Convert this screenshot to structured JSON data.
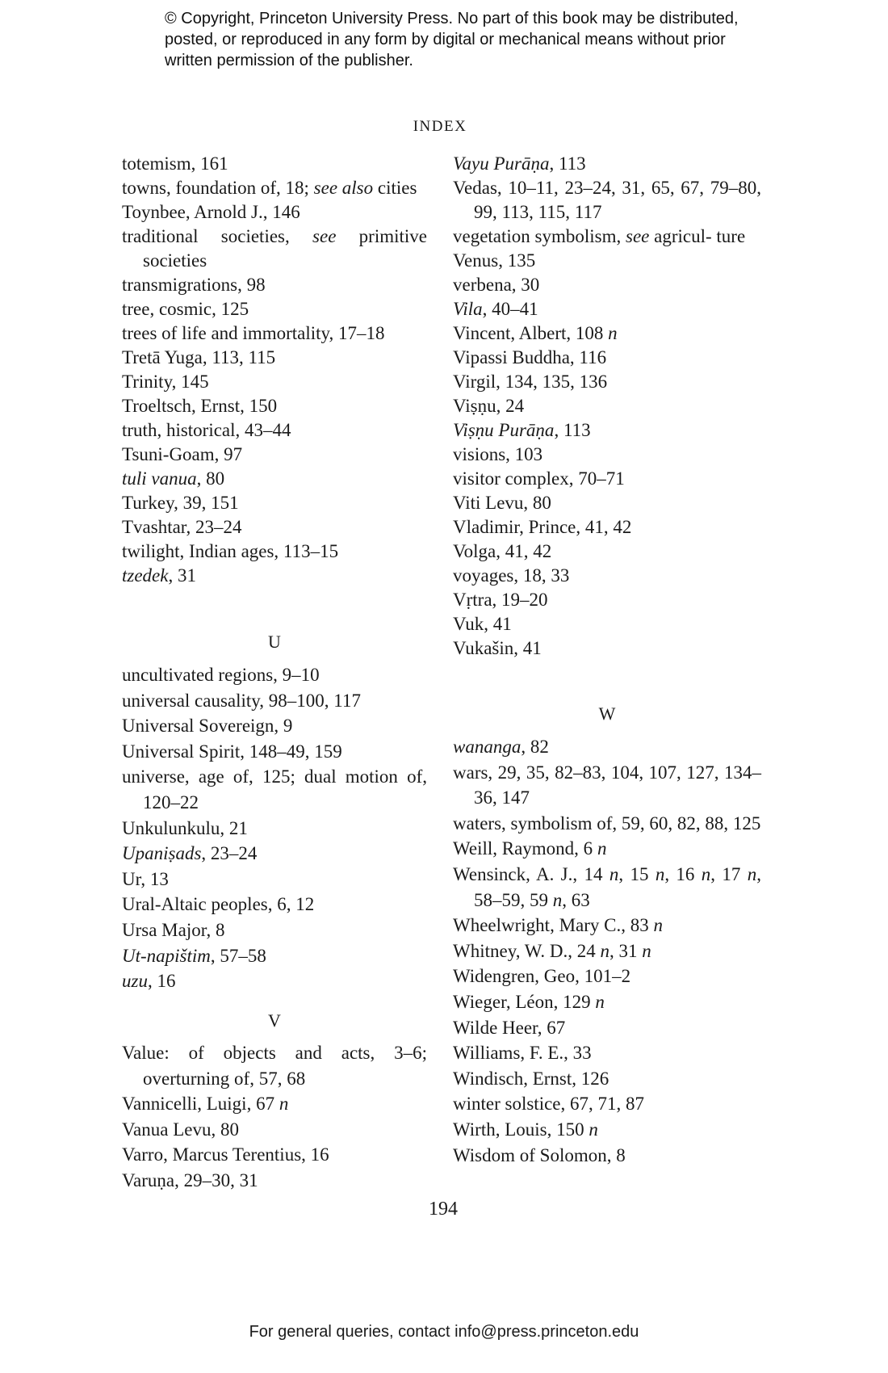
{
  "copyright": "© Copyright, Princeton University Press. No part of this book may be distributed, posted, or reproduced in any form by digital or mechanical means without prior written permission of the publisher.",
  "header": "INDEX",
  "sections": {
    "t": [
      [
        [
          "totemism, 161"
        ]
      ],
      [
        [
          "towns, foundation of, 18; "
        ],
        [
          "see also",
          "i"
        ],
        [
          " cities"
        ]
      ],
      [
        [
          "Toynbee, Arnold J., 146"
        ]
      ],
      [
        [
          "traditional societies, "
        ],
        [
          "see",
          "i"
        ],
        [
          " primitive societies"
        ]
      ],
      [
        [
          "transmigrations, 98"
        ]
      ],
      [
        [
          "tree, cosmic, 125"
        ]
      ],
      [
        [
          "trees of life and immortality, 17–18"
        ]
      ],
      [
        [
          "Tretā Yuga, 113, 115"
        ]
      ],
      [
        [
          "Trinity, 145"
        ]
      ],
      [
        [
          "Troeltsch, Ernst, 150"
        ]
      ],
      [
        [
          "truth, historical, 43–44"
        ]
      ],
      [
        [
          "Tsuni-Goam, 97"
        ]
      ],
      [
        [
          "tuli vanua",
          "i"
        ],
        [
          ", 80"
        ]
      ],
      [
        [
          "Turkey, 39, 151"
        ]
      ],
      [
        [
          "Tvashtar, 23–24"
        ]
      ],
      [
        [
          "twilight, Indian ages, 113–15"
        ]
      ],
      [
        [
          "tzedek",
          "i"
        ],
        [
          ", 31"
        ]
      ]
    ],
    "u_heading": "U",
    "u": [
      [
        [
          "uncultivated regions, 9–10"
        ]
      ],
      [
        [
          "universal causality, 98–100, 117"
        ]
      ],
      [
        [
          "Universal Sovereign, 9"
        ]
      ],
      [
        [
          "Universal Spirit, 148–49, 159"
        ]
      ],
      [
        [
          "universe, age of, 125; dual motion of, 120–22"
        ]
      ],
      [
        [
          "Unkulunkulu, 21"
        ]
      ],
      [
        [
          "Upaniṣads",
          "i"
        ],
        [
          ", 23–24"
        ]
      ],
      [
        [
          "Ur, 13"
        ]
      ],
      [
        [
          "Ural-Altaic peoples, 6, 12"
        ]
      ],
      [
        [
          "Ursa Major, 8"
        ]
      ],
      [
        [
          "Ut-napištim",
          "i"
        ],
        [
          ", 57–58"
        ]
      ],
      [
        [
          "uzu",
          "i"
        ],
        [
          ", 16"
        ]
      ]
    ],
    "v_heading": "V",
    "v_left": [
      [
        [
          "Value: of objects and acts, 3–6; overturning of, 57, 68"
        ]
      ],
      [
        [
          "Vannicelli, Luigi, 67 "
        ],
        [
          "n",
          "i"
        ]
      ],
      [
        [
          "Vanua Levu, 80"
        ]
      ],
      [
        [
          "Varro, Marcus Terentius, 16"
        ]
      ],
      [
        [
          "Varuṇa, 29–30, 31"
        ]
      ]
    ],
    "v_right": [
      [
        [
          "Vayu Purāṇa",
          "i"
        ],
        [
          ", 113"
        ]
      ],
      [
        [
          "Vedas, 10–11, 23–24, 31, 65, 67, 79–80, 99, 113, 115, 117"
        ]
      ],
      [
        [
          "vegetation symbolism, "
        ],
        [
          "see",
          "i"
        ],
        [
          " agricul- ture"
        ]
      ],
      [
        [
          "Venus, 135"
        ]
      ],
      [
        [
          "verbena, 30"
        ]
      ],
      [
        [
          "Vila",
          "i"
        ],
        [
          ", 40–41"
        ]
      ],
      [
        [
          "Vincent, Albert, 108 "
        ],
        [
          "n",
          "i"
        ]
      ],
      [
        [
          "Vipassi Buddha, 116"
        ]
      ],
      [
        [
          "Virgil, 134, 135, 136"
        ]
      ],
      [
        [
          "Viṣṇu, 24"
        ]
      ],
      [
        [
          "Viṣṇu Purāṇa",
          "i"
        ],
        [
          ", 113"
        ]
      ],
      [
        [
          "visions, 103"
        ]
      ],
      [
        [
          "visitor complex, 70–71"
        ]
      ],
      [
        [
          "Viti Levu, 80"
        ]
      ],
      [
        [
          "Vladimir, Prince, 41, 42"
        ]
      ],
      [
        [
          "Volga, 41, 42"
        ]
      ],
      [
        [
          "voyages, 18, 33"
        ]
      ],
      [
        [
          "Vṛtra, 19–20"
        ]
      ],
      [
        [
          "Vuk, 41"
        ]
      ],
      [
        [
          "Vukašin, 41"
        ]
      ]
    ],
    "w_heading": "W",
    "w": [
      [
        [
          "wananga",
          "i"
        ],
        [
          ", 82"
        ]
      ],
      [
        [
          "wars, 29, 35, 82–83, 104, 107, 127, 134–36, 147"
        ]
      ],
      [
        [
          "waters, symbolism of, 59, 60, 82, 88, 125"
        ]
      ],
      [
        [
          "Weill, Raymond, 6 "
        ],
        [
          "n",
          "i"
        ]
      ],
      [
        [
          "Wensinck, A. J., 14 "
        ],
        [
          "n",
          "i"
        ],
        [
          ", 15 "
        ],
        [
          "n",
          "i"
        ],
        [
          ", 16 "
        ],
        [
          "n",
          "i"
        ],
        [
          ", 17 "
        ],
        [
          "n",
          "i"
        ],
        [
          ", 58–59, 59 "
        ],
        [
          "n",
          "i"
        ],
        [
          ", 63"
        ]
      ],
      [
        [
          "Wheelwright, Mary C., 83 "
        ],
        [
          "n",
          "i"
        ]
      ],
      [
        [
          "Whitney, W. D., 24 "
        ],
        [
          "n",
          "i"
        ],
        [
          ", 31 "
        ],
        [
          "n",
          "i"
        ]
      ],
      [
        [
          "Widengren, Geo, 101–2"
        ]
      ],
      [
        [
          "Wieger, Léon, 129 "
        ],
        [
          "n",
          "i"
        ]
      ],
      [
        [
          "Wilde Heer, 67"
        ]
      ],
      [
        [
          "Williams, F. E., 33"
        ]
      ],
      [
        [
          "Windisch, Ernst, 126"
        ]
      ],
      [
        [
          "winter solstice, 67, 71, 87"
        ]
      ],
      [
        [
          "Wirth, Louis, 150 "
        ],
        [
          "n",
          "i"
        ]
      ],
      [
        [
          "Wisdom of Solomon, 8"
        ]
      ]
    ]
  },
  "page_number": "194",
  "footer": "For general queries, contact info@press.princeton.edu"
}
